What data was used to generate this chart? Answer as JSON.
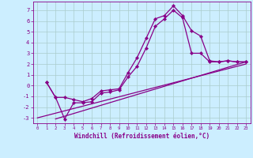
{
  "xlabel": "Windchill (Refroidissement éolien,°C)",
  "bg_color": "#cceeff",
  "line_color": "#880088",
  "grid_color": "#aacccc",
  "xlim": [
    -0.5,
    23.5
  ],
  "ylim": [
    -3.5,
    7.8
  ],
  "yticks": [
    -3,
    -2,
    -1,
    0,
    1,
    2,
    3,
    4,
    5,
    6,
    7
  ],
  "xticks": [
    0,
    1,
    2,
    3,
    4,
    5,
    6,
    7,
    8,
    9,
    10,
    11,
    12,
    13,
    14,
    15,
    16,
    17,
    18,
    19,
    20,
    21,
    22,
    23
  ],
  "line1_x": [
    1,
    2,
    3,
    4,
    5,
    6,
    7,
    8,
    9,
    10,
    11,
    12,
    13,
    14,
    15,
    16,
    17,
    18,
    19,
    20,
    21,
    22,
    23
  ],
  "line1_y": [
    0.3,
    -1.1,
    -1.1,
    -1.3,
    -1.5,
    -1.2,
    -0.5,
    -0.4,
    -0.3,
    1.2,
    2.6,
    4.4,
    6.2,
    6.5,
    7.4,
    6.5,
    5.1,
    4.6,
    2.3,
    2.2,
    2.3,
    2.2,
    2.2
  ],
  "line2_x": [
    1,
    2,
    3,
    4,
    5,
    6,
    7,
    8,
    9,
    10,
    11,
    12,
    13,
    14,
    15,
    16,
    17,
    18,
    19,
    20,
    21,
    22,
    23
  ],
  "line2_y": [
    0.3,
    -1.1,
    -3.1,
    -1.6,
    -1.6,
    -1.5,
    -0.7,
    -0.6,
    -0.4,
    0.8,
    1.8,
    3.5,
    5.5,
    6.2,
    7.0,
    6.3,
    3.0,
    3.0,
    2.2,
    2.2,
    2.3,
    2.2,
    2.2
  ],
  "line3_x": [
    2,
    23
  ],
  "line3_y": [
    -3.1,
    2.2
  ],
  "line4_x": [
    0,
    23
  ],
  "line4_y": [
    -3.0,
    2.0
  ],
  "marker": "D",
  "markersize": 2.2,
  "linewidth": 0.9
}
